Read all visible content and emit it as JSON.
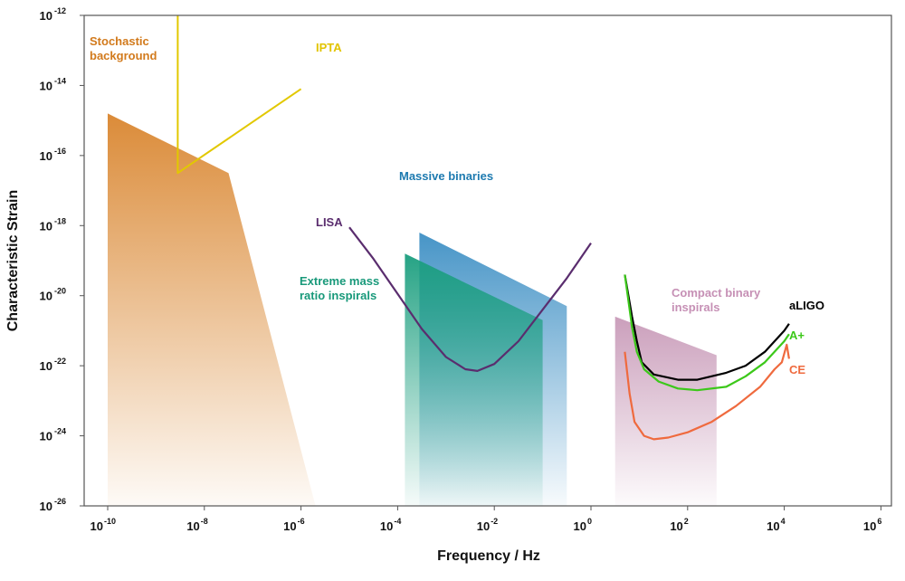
{
  "chart_data": {
    "type": "line",
    "xlabel": "Frequency / Hz",
    "ylabel": "Characteristic Strain",
    "x_scale": "log",
    "y_scale": "log",
    "xlim_exp": [
      -10.5,
      6.2
    ],
    "ylim_exp": [
      -26,
      -12
    ],
    "x_ticks": [
      {
        "base": "10",
        "exp": "-10",
        "value": -10
      },
      {
        "base": "10",
        "exp": "-8",
        "value": -8
      },
      {
        "base": "10",
        "exp": "-6",
        "value": -6
      },
      {
        "base": "10",
        "exp": "-4",
        "value": -4
      },
      {
        "base": "10",
        "exp": "-2",
        "value": -2
      },
      {
        "base": "10",
        "exp": "0",
        "value": 0
      },
      {
        "base": "10",
        "exp": "2",
        "value": 2
      },
      {
        "base": "10",
        "exp": "4",
        "value": 4
      },
      {
        "base": "10",
        "exp": "6",
        "value": 6
      }
    ],
    "y_ticks": [
      {
        "base": "10",
        "exp": "-12",
        "value": -12
      },
      {
        "base": "10",
        "exp": "-14",
        "value": -14
      },
      {
        "base": "10",
        "exp": "-16",
        "value": -16
      },
      {
        "base": "10",
        "exp": "-18",
        "value": -18
      },
      {
        "base": "10",
        "exp": "-20",
        "value": -20
      },
      {
        "base": "10",
        "exp": "-22",
        "value": -22
      },
      {
        "base": "10",
        "exp": "-24",
        "value": -24
      },
      {
        "base": "10",
        "exp": "-26",
        "value": -26
      }
    ],
    "regions": [
      {
        "name": "stochastic",
        "label": [
          "Stochastic",
          "background"
        ],
        "color": "#d9852e",
        "points": [
          [
            -10,
            -14.8
          ],
          [
            -7.5,
            -16.5
          ],
          [
            -5.7,
            -26
          ],
          [
            -10,
            -26
          ]
        ]
      },
      {
        "name": "massive",
        "label": [
          "Massive binaries"
        ],
        "color": "#3d8fc4",
        "points": [
          [
            -3.55,
            -18.2
          ],
          [
            -0.5,
            -20.3
          ],
          [
            -0.5,
            -26
          ],
          [
            -3.55,
            -26
          ]
        ]
      },
      {
        "name": "emri",
        "label": [
          "Extreme mass",
          "ratio inspirals"
        ],
        "color": "#1a9e7e",
        "points": [
          [
            -3.85,
            -18.8
          ],
          [
            -1.0,
            -20.7
          ],
          [
            -1.0,
            -26
          ],
          [
            -3.85,
            -26
          ]
        ]
      },
      {
        "name": "compact",
        "label": [
          "Compact binary",
          "inspirals"
        ],
        "color": "#c89ab8",
        "points": [
          [
            0.5,
            -20.6
          ],
          [
            2.6,
            -21.7
          ],
          [
            2.6,
            -26
          ],
          [
            0.5,
            -26
          ]
        ]
      }
    ],
    "series": [
      {
        "name": "IPTA",
        "color": "#e2c800",
        "points": [
          [
            -8.55,
            -12
          ],
          [
            -8.55,
            -16.5
          ],
          [
            -6,
            -14.1
          ]
        ]
      },
      {
        "name": "LISA",
        "color": "#5a2d6e",
        "points": [
          [
            -5.0,
            -18.05
          ],
          [
            -4.5,
            -18.95
          ],
          [
            -4.0,
            -19.95
          ],
          [
            -3.5,
            -20.95
          ],
          [
            -3.0,
            -21.75
          ],
          [
            -2.6,
            -22.1
          ],
          [
            -2.35,
            -22.15
          ],
          [
            -2.0,
            -21.95
          ],
          [
            -1.5,
            -21.3
          ],
          [
            -1.0,
            -20.4
          ],
          [
            -0.5,
            -19.5
          ],
          [
            0.0,
            -18.5
          ]
        ]
      },
      {
        "name": "aLIGO",
        "color": "#000000",
        "points": [
          [
            0.7,
            -19.4
          ],
          [
            0.85,
            -20.6
          ],
          [
            0.95,
            -21.3
          ],
          [
            1.05,
            -21.9
          ],
          [
            1.3,
            -22.25
          ],
          [
            1.8,
            -22.4
          ],
          [
            2.2,
            -22.4
          ],
          [
            2.8,
            -22.2
          ],
          [
            3.2,
            -22.0
          ],
          [
            3.6,
            -21.6
          ],
          [
            4.0,
            -21.0
          ],
          [
            4.1,
            -20.8
          ]
        ]
      },
      {
        "name": "A+",
        "color": "#3cc81a",
        "points": [
          [
            0.7,
            -19.4
          ],
          [
            0.85,
            -20.9
          ],
          [
            0.95,
            -21.6
          ],
          [
            1.1,
            -22.1
          ],
          [
            1.4,
            -22.45
          ],
          [
            1.8,
            -22.65
          ],
          [
            2.2,
            -22.7
          ],
          [
            2.8,
            -22.6
          ],
          [
            3.2,
            -22.3
          ],
          [
            3.6,
            -21.9
          ],
          [
            4.0,
            -21.3
          ],
          [
            4.1,
            -21.1
          ]
        ]
      },
      {
        "name": "CE",
        "color": "#ef6a3e",
        "points": [
          [
            0.7,
            -21.6
          ],
          [
            0.8,
            -22.8
          ],
          [
            0.9,
            -23.6
          ],
          [
            1.1,
            -24.0
          ],
          [
            1.3,
            -24.1
          ],
          [
            1.6,
            -24.05
          ],
          [
            2.0,
            -23.9
          ],
          [
            2.5,
            -23.6
          ],
          [
            3.0,
            -23.15
          ],
          [
            3.5,
            -22.6
          ],
          [
            3.8,
            -22.1
          ],
          [
            3.95,
            -21.9
          ],
          [
            4.05,
            -21.4
          ],
          [
            4.1,
            -21.8
          ]
        ]
      }
    ]
  }
}
